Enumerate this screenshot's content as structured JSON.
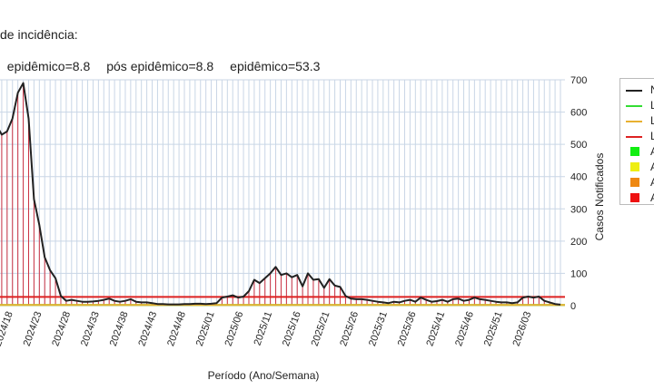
{
  "header": {
    "title": "de incidência:",
    "stats": [
      "epidêmico=8.8",
      "pós epidêmico=8.8",
      "epidêmico=53.3"
    ]
  },
  "legend": {
    "items": [
      {
        "kind": "line",
        "label": "N",
        "color": "#222222"
      },
      {
        "kind": "line",
        "label": "L",
        "color": "#33dd33"
      },
      {
        "kind": "line",
        "label": "L",
        "color": "#e8b030"
      },
      {
        "kind": "line",
        "label": "L",
        "color": "#dd2222"
      },
      {
        "kind": "square",
        "label": "A",
        "color": "#11ee11"
      },
      {
        "kind": "square",
        "label": "A",
        "color": "#eeee11"
      },
      {
        "kind": "square",
        "label": "A",
        "color": "#ee8811"
      },
      {
        "kind": "square",
        "label": "A",
        "color": "#ee1111"
      }
    ]
  },
  "chart_data": {
    "type": "line",
    "xlabel": "Período (Ano/Semana)",
    "ylabel": "Casos Notificados",
    "ylim": [
      0,
      700
    ],
    "yticks": [
      0,
      100,
      200,
      300,
      400,
      500,
      600,
      700
    ],
    "xticks": [
      "2024/18",
      "2024/23",
      "2024/28",
      "2024/33",
      "2024/38",
      "2024/43",
      "2024/48",
      "2025/01",
      "2025/06",
      "2025/11",
      "2025/16",
      "2025/21",
      "2025/26",
      "2025/31",
      "2025/36",
      "2025/41",
      "2025/46",
      "2025/51",
      "2026/03"
    ],
    "grid": true,
    "y_axis_side": "right",
    "thresholds": [
      {
        "value": 2,
        "color": "#33dd33"
      },
      {
        "value": 2,
        "color": "#e8b030"
      },
      {
        "value": 27,
        "color": "#dd2222"
      }
    ],
    "series": [
      {
        "color": "#222222",
        "values": [
          560,
          530,
          540,
          580,
          660,
          690,
          580,
          330,
          250,
          150,
          110,
          85,
          30,
          15,
          18,
          15,
          12,
          12,
          13,
          15,
          18,
          22,
          15,
          12,
          15,
          20,
          12,
          10,
          10,
          8,
          5,
          5,
          4,
          4,
          4,
          5,
          5,
          6,
          6,
          5,
          6,
          8,
          25,
          28,
          32,
          25,
          28,
          45,
          80,
          70,
          85,
          100,
          120,
          95,
          100,
          88,
          95,
          60,
          100,
          80,
          82,
          55,
          82,
          62,
          58,
          30,
          22,
          20,
          20,
          18,
          15,
          12,
          10,
          8,
          12,
          10,
          15,
          18,
          12,
          25,
          18,
          12,
          14,
          18,
          12,
          20,
          22,
          15,
          18,
          25,
          20,
          18,
          15,
          12,
          10,
          10,
          8,
          10,
          25,
          28,
          25,
          28,
          15,
          10,
          5,
          3
        ]
      }
    ]
  }
}
